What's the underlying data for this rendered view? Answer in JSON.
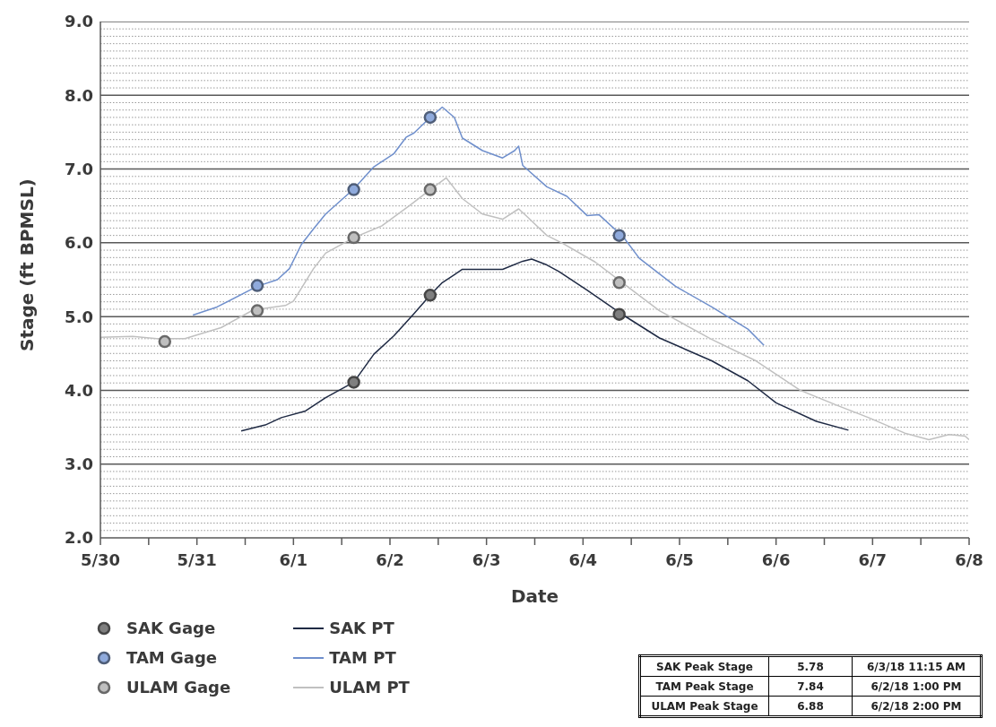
{
  "chart_data": {
    "type": "line",
    "xlabel": "Date",
    "ylabel": "Stage (ft BPMSL)",
    "ylim": [
      2,
      9
    ],
    "yticks": [
      {
        "value": 2,
        "label": "2.0"
      },
      {
        "value": 2.1,
        "label": null
      },
      {
        "value": 2.2,
        "label": null
      },
      {
        "value": 2.3,
        "label": null
      },
      {
        "value": 2.4,
        "label": null
      },
      {
        "value": 2.5,
        "label": null
      },
      {
        "value": 2.6,
        "label": null
      },
      {
        "value": 2.7,
        "label": null
      },
      {
        "value": 2.8,
        "label": null
      },
      {
        "value": 2.9,
        "label": null
      },
      {
        "value": 3,
        "label": "3.0"
      },
      {
        "value": 3.1,
        "label": null
      },
      {
        "value": 3.2,
        "label": null
      },
      {
        "value": 3.3,
        "label": null
      },
      {
        "value": 3.4,
        "label": null
      },
      {
        "value": 3.5,
        "label": null
      },
      {
        "value": 3.6,
        "label": null
      },
      {
        "value": 3.7,
        "label": null
      },
      {
        "value": 3.8,
        "label": null
      },
      {
        "value": 3.9,
        "label": null
      },
      {
        "value": 4,
        "label": "4.0"
      },
      {
        "value": 4.1,
        "label": null
      },
      {
        "value": 4.2,
        "label": null
      },
      {
        "value": 4.3,
        "label": null
      },
      {
        "value": 4.4,
        "label": null
      },
      {
        "value": 4.5,
        "label": null
      },
      {
        "value": 4.6,
        "label": null
      },
      {
        "value": 4.7,
        "label": null
      },
      {
        "value": 4.8,
        "label": null
      },
      {
        "value": 4.9,
        "label": null
      },
      {
        "value": 5,
        "label": "5.0"
      },
      {
        "value": 5.1,
        "label": null
      },
      {
        "value": 5.2,
        "label": null
      },
      {
        "value": 5.3,
        "label": null
      },
      {
        "value": 5.4,
        "label": null
      },
      {
        "value": 5.5,
        "label": null
      },
      {
        "value": 5.6,
        "label": null
      },
      {
        "value": 5.7,
        "label": null
      },
      {
        "value": 5.8,
        "label": null
      },
      {
        "value": 5.9,
        "label": null
      },
      {
        "value": 6,
        "label": "6.0"
      },
      {
        "value": 6.1,
        "label": null
      },
      {
        "value": 6.2,
        "label": null
      },
      {
        "value": 6.3,
        "label": null
      },
      {
        "value": 6.4,
        "label": null
      },
      {
        "value": 6.5,
        "label": null
      },
      {
        "value": 6.6,
        "label": null
      },
      {
        "value": 6.7,
        "label": null
      },
      {
        "value": 6.8,
        "label": null
      },
      {
        "value": 6.9,
        "label": null
      },
      {
        "value": 7,
        "label": "7.0"
      },
      {
        "value": 7.1,
        "label": null
      },
      {
        "value": 7.2,
        "label": null
      },
      {
        "value": 7.3,
        "label": null
      },
      {
        "value": 7.4,
        "label": null
      },
      {
        "value": 7.5,
        "label": null
      },
      {
        "value": 7.6,
        "label": null
      },
      {
        "value": 7.7,
        "label": null
      },
      {
        "value": 7.8,
        "label": null
      },
      {
        "value": 7.9,
        "label": null
      },
      {
        "value": 8,
        "label": "8.0"
      },
      {
        "value": 8.1,
        "label": null
      },
      {
        "value": 8.2,
        "label": null
      },
      {
        "value": 8.3,
        "label": null
      },
      {
        "value": 8.4,
        "label": null
      },
      {
        "value": 8.5,
        "label": null
      },
      {
        "value": 8.6,
        "label": null
      },
      {
        "value": 8.7,
        "label": null
      },
      {
        "value": 8.8,
        "label": null
      },
      {
        "value": 8.9,
        "label": null
      },
      {
        "value": 9,
        "label": "9.0"
      }
    ],
    "xlim": [
      "--05-30",
      "--06-08"
    ],
    "xticks": [
      {
        "value": "--05-30",
        "label": "5/30"
      },
      {
        "value": "--05-30T12:00",
        "label": null
      },
      {
        "value": "--05-31",
        "label": "5/31"
      },
      {
        "value": "--05-31T12:00",
        "label": null
      },
      {
        "value": "--06-01",
        "label": "6/1"
      },
      {
        "value": "--06-01T12:00",
        "label": null
      },
      {
        "value": "--06-02",
        "label": "6/2"
      },
      {
        "value": "--06-02T12:00",
        "label": null
      },
      {
        "value": "--06-03",
        "label": "6/3"
      },
      {
        "value": "--06-03T12:00",
        "label": null
      },
      {
        "value": "--06-04",
        "label": "6/4"
      },
      {
        "value": "--06-04T12:00",
        "label": null
      },
      {
        "value": "--06-05",
        "label": "6/5"
      },
      {
        "value": "--06-05T12:00",
        "label": null
      },
      {
        "value": "--06-06",
        "label": "6/6"
      },
      {
        "value": "--06-06T12:00",
        "label": null
      },
      {
        "value": "--06-07",
        "label": "6/7"
      },
      {
        "value": "--06-07T12:00",
        "label": null
      },
      {
        "value": "--06-08",
        "label": "6/8"
      }
    ],
    "grid": "y",
    "legend": "bottom left",
    "series": [
      {
        "name": "SAK Gage",
        "type": "scatter",
        "marker": "circle",
        "color": "#7f7f7f",
        "x": [
          "--06-01T15:00",
          "--06-02T10:00",
          "--06-04T09:00"
        ],
        "values": [
          4.11,
          5.29,
          5.03
        ]
      },
      {
        "name": "TAM Gage",
        "type": "scatter",
        "marker": "circle",
        "color": "#8faadc",
        "x": [
          "--05-31T15:00",
          "--06-01T15:00",
          "--06-02T10:00",
          "--06-04T09:00"
        ],
        "values": [
          5.42,
          6.72,
          7.7,
          6.1
        ]
      },
      {
        "name": "ULAM Gage",
        "type": "scatter",
        "marker": "circle",
        "color": "#bfbfbf",
        "x": [
          "--05-30T16:00",
          "--05-31T15:00",
          "--06-01T15:00",
          "--06-02T10:00",
          "--06-04T09:00"
        ],
        "values": [
          4.66,
          5.08,
          6.07,
          6.72,
          5.46
        ]
      },
      {
        "name": "SAK PT",
        "type": "line",
        "marker": "none",
        "color": "#1f2a44",
        "x": [
          "--05-31T11:00",
          "--05-31T17:00",
          "--05-31T21:00",
          "--06-01T03:00",
          "--06-01T08:00",
          "--06-01T15:00",
          "--06-01T20:00",
          "--06-02T01:00",
          "--06-02T06:00",
          "--06-02T10:00",
          "--06-02T13:00",
          "--06-02T18:00",
          "--06-03T00:00",
          "--06-03T04:00",
          "--06-03T09:00",
          "--06-03T11:15",
          "--06-03T15:00",
          "--06-03T18:00",
          "--06-04T01:00",
          "--06-04T06:00",
          "--06-04T10:00",
          "--06-04T19:00",
          "--06-05T08:00",
          "--06-05T17:00",
          "--06-06T00:00",
          "--06-06T10:00",
          "--06-06T18:00"
        ],
        "values": [
          3.45,
          3.53,
          3.63,
          3.72,
          3.9,
          4.11,
          4.49,
          4.74,
          5.04,
          5.29,
          5.46,
          5.64,
          5.64,
          5.64,
          5.75,
          5.78,
          5.7,
          5.61,
          5.36,
          5.17,
          5.02,
          4.71,
          4.4,
          4.13,
          3.83,
          3.58,
          3.46
        ]
      },
      {
        "name": "TAM PT",
        "type": "line",
        "marker": "none",
        "color": "#6f8fcc",
        "x": [
          "--05-30T23:00",
          "--05-31T05:00",
          "--05-31T15:00",
          "--05-31T20:00",
          "--05-31T23:00",
          "--06-01T02:00",
          "--06-01T05:00",
          "--06-01T08:00",
          "--06-01T15:00",
          "--06-01T20:00",
          "--06-02T01:00",
          "--06-02T04:00",
          "--06-02T06:00",
          "--06-02T10:00",
          "--06-02T13:00",
          "--06-02T16:00",
          "--06-02T18:00",
          "--06-02T23:00",
          "--06-03T04:00",
          "--06-03T07:00",
          "--06-03T08:00",
          "--06-03T09:00",
          "--06-03T10:00",
          "--06-03T15:00",
          "--06-03T20:00",
          "--06-04T01:00",
          "--06-04T04:00",
          "--06-04T10:00",
          "--06-04T14:00",
          "--06-04T23:00",
          "--06-05T08:00",
          "--06-05T17:00",
          "--06-05T21:00"
        ],
        "values": [
          5.02,
          5.13,
          5.41,
          5.5,
          5.65,
          5.98,
          6.19,
          6.39,
          6.73,
          7.03,
          7.21,
          7.43,
          7.49,
          7.7,
          7.84,
          7.7,
          7.42,
          7.25,
          7.15,
          7.25,
          7.31,
          7.05,
          7.0,
          6.76,
          6.63,
          6.37,
          6.38,
          6.08,
          5.79,
          5.41,
          5.13,
          4.83,
          4.61
        ]
      },
      {
        "name": "ULAM PT",
        "type": "line",
        "marker": "none",
        "color": "#c0c0c0",
        "x": [
          "--05-30T00:00",
          "--05-30T08:00",
          "--05-30T14:00",
          "--05-30T21:00",
          "--05-31T06:00",
          "--05-31T14:00",
          "--05-31T22:00",
          "--06-01T00:00",
          "--06-01T05:00",
          "--06-01T08:00",
          "--06-01T15:00",
          "--06-01T22:00",
          "--06-02T05:00",
          "--06-02T10:00",
          "--06-02T14:00",
          "--06-02T18:00",
          "--06-02T23:00",
          "--06-03T04:00",
          "--06-03T08:00",
          "--06-03T10:00",
          "--06-03T15:00",
          "--06-03T19:00",
          "--06-04T03:00",
          "--06-04T10:00",
          "--06-04T19:00",
          "--06-05T08:00",
          "--06-05T19:00",
          "--06-06T06:00",
          "--06-06T15:00",
          "--06-06T23:00",
          "--06-07T08:00",
          "--06-07T14:00",
          "--06-07T19:00",
          "--06-07T23:00",
          "--06-08T00:00"
        ],
        "values": [
          4.72,
          4.73,
          4.7,
          4.7,
          4.85,
          5.09,
          5.15,
          5.21,
          5.65,
          5.86,
          6.07,
          6.23,
          6.51,
          6.72,
          6.88,
          6.6,
          6.39,
          6.32,
          6.46,
          6.36,
          6.1,
          5.99,
          5.74,
          5.45,
          5.08,
          4.69,
          4.4,
          4.0,
          3.8,
          3.63,
          3.42,
          3.33,
          3.4,
          3.38,
          3.33
        ]
      }
    ],
    "annotations": [
      "SAK Peak Stage",
      "5.78",
      "6/3/18 11:15 AM",
      "TAM Peak Stage",
      "7.84",
      "6/2/18 1:00 PM",
      "ULAM Peak Stage",
      "6.88",
      "6/2/18 2:00 PM"
    ]
  }
}
